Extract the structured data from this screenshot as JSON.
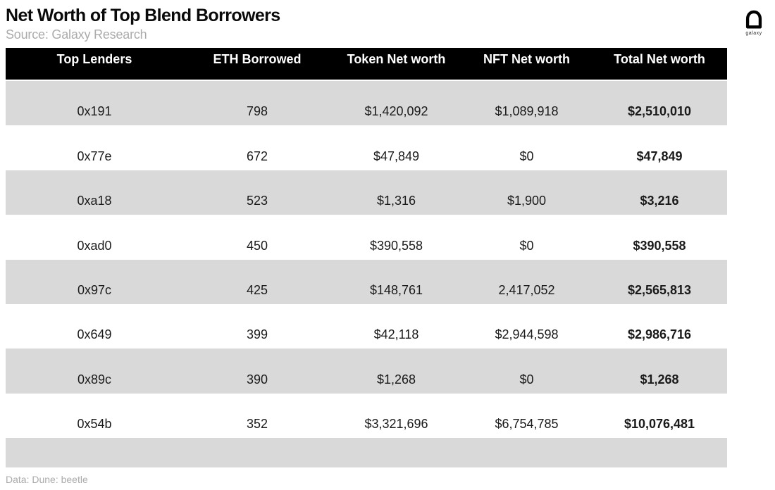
{
  "title": "Net Worth of Top Blend Borrowers",
  "source": "Source: Galaxy Research",
  "logo": {
    "icon": "galaxy-logo",
    "label": "galaxy"
  },
  "footer": {
    "credit": "Data: Dune: beetle"
  },
  "colors": {
    "header_bg": "#000000",
    "header_text": "#ffffff",
    "stripe": "#d9d9d9",
    "muted": "#ababab"
  },
  "chart_data": {
    "type": "table",
    "title": "Net Worth of Top Blend Borrowers",
    "columns": [
      "Top Lenders",
      "ETH Borrowed",
      "Token Net worth",
      "NFT Net worth",
      "Total Net worth"
    ],
    "rows": [
      [
        "0x191",
        "798",
        "$1,420,092",
        "$1,089,918",
        "$2,510,010"
      ],
      [
        "0x77e",
        "672",
        "$47,849",
        "$0",
        "$47,849"
      ],
      [
        "0xa18",
        "523",
        "$1,316",
        "$1,900",
        "$3,216"
      ],
      [
        "0xad0",
        "450",
        "$390,558",
        "$0",
        "$390,558"
      ],
      [
        "0x97c",
        "425",
        "$148,761",
        "2,417,052",
        "$2,565,813"
      ],
      [
        "0x649",
        "399",
        "$42,118",
        "$2,944,598",
        "$2,986,716"
      ],
      [
        "0x89c",
        "390",
        "$1,268",
        "$0",
        "$1,268"
      ],
      [
        "0x54b",
        "352",
        "$3,321,696",
        "$6,754,785",
        "$10,076,481"
      ]
    ],
    "layout": {
      "striped_rows": "first row shaded, alternating",
      "bold_column": "Total Net worth",
      "header_style": "white bold text on black band"
    }
  }
}
